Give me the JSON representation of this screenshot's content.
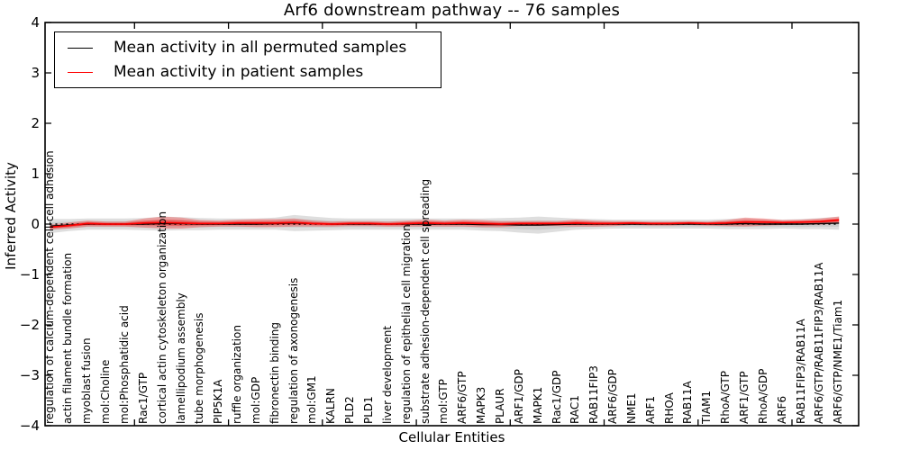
{
  "title": "Arf6 downstream pathway -- 76 samples",
  "legend": {
    "items": [
      {
        "label": "Mean activity in all permuted samples",
        "color": "#000000"
      },
      {
        "label": "Mean activity in patient samples",
        "color": "#ff0000"
      }
    ]
  },
  "axes": {
    "ylabel": "Inferred Activity",
    "xlabel": "Cellular Entities",
    "ytick_labels": [
      "4",
      "3",
      "2",
      "1",
      "0",
      "−1",
      "−2",
      "−3",
      "−4"
    ]
  },
  "colors": {
    "permuted_line": "#000000",
    "patient_line": "#ff0000",
    "permuted_band": "rgba(0,0,0,0.13)",
    "patient_band": "rgba(255,0,0,0.28)",
    "zero_line": "#000000"
  },
  "chart_data": {
    "type": "line",
    "title": "Arf6 downstream pathway -- 76 samples",
    "xlabel": "Cellular Entities",
    "ylabel": "Inferred Activity",
    "ylim": [
      -4,
      4
    ],
    "yticks": [
      4,
      3,
      2,
      1,
      0,
      -1,
      -2,
      -3,
      -4
    ],
    "grid": false,
    "legend_position": "upper left",
    "zero_reference_line": true,
    "categories": [
      "regulation of calcium-dependent cell-cell adhesion",
      "actin filament bundle formation",
      "myoblast fusion",
      "mol:Choline",
      "mol:Phosphatidic acid",
      "Rac1/GTP",
      "cortical actin cytoskeleton organization",
      "lamellipodium assembly",
      "tube morphogenesis",
      "PIP5K1A",
      "ruffle organization",
      "mol:GDP",
      "fibronectin binding",
      "regulation of axonogenesis",
      "mol:GM1",
      "KALRN",
      "PLD2",
      "PLD1",
      "liver development",
      "regulation of epithelial cell migration",
      "substrate adhesion-dependent cell spreading",
      "mol:GTP",
      "ARF6/GTP",
      "MAPK3",
      "PLAUR",
      "ARF1/GDP",
      "MAPK1",
      "Rac1/GDP",
      "RAC1",
      "RAB11FIP3",
      "ARF6/GDP",
      "NME1",
      "ARF1",
      "RHOA",
      "RAB11A",
      "TIAM1",
      "RhoA/GTP",
      "ARF1/GTP",
      "RhoA/GDP",
      "ARF6",
      "RAB11FIP3/RAB11A",
      "ARF6/GTP/RAB11FIP3/RAB11A",
      "ARF6/GTP/NME1/Tiam1"
    ],
    "series": [
      {
        "name": "Mean activity in all permuted samples",
        "color": "#000000",
        "band_color": "rgba(0,0,0,0.13)",
        "values": [
          -0.04,
          -0.02,
          0.0,
          0.0,
          0.0,
          0.0,
          0.01,
          0.01,
          0.0,
          0.0,
          0.0,
          0.0,
          0.01,
          0.02,
          0.01,
          0.0,
          0.0,
          0.0,
          0.0,
          0.0,
          0.0,
          0.0,
          0.0,
          -0.01,
          -0.01,
          -0.02,
          -0.02,
          -0.01,
          0.0,
          0.0,
          0.0,
          0.0,
          0.0,
          0.0,
          0.0,
          0.0,
          0.0,
          0.01,
          0.0,
          0.0,
          0.0,
          0.01,
          0.02
        ],
        "std": [
          0.14,
          0.12,
          0.11,
          0.11,
          0.11,
          0.12,
          0.14,
          0.13,
          0.12,
          0.11,
          0.11,
          0.11,
          0.12,
          0.16,
          0.14,
          0.12,
          0.11,
          0.11,
          0.11,
          0.11,
          0.11,
          0.11,
          0.11,
          0.12,
          0.13,
          0.15,
          0.17,
          0.14,
          0.11,
          0.1,
          0.09,
          0.09,
          0.09,
          0.09,
          0.09,
          0.09,
          0.1,
          0.11,
          0.1,
          0.09,
          0.1,
          0.11,
          0.13
        ]
      },
      {
        "name": "Mean activity in patient samples",
        "color": "#ff0000",
        "band_color": "rgba(255,0,0,0.28)",
        "values": [
          -0.06,
          -0.03,
          0.01,
          0.0,
          0.0,
          0.02,
          0.03,
          0.02,
          0.01,
          0.01,
          0.02,
          0.02,
          0.02,
          0.03,
          0.01,
          0.0,
          0.01,
          0.01,
          0.0,
          0.01,
          0.02,
          0.01,
          0.02,
          0.01,
          0.0,
          0.01,
          0.01,
          0.01,
          0.02,
          0.01,
          0.01,
          0.02,
          0.01,
          0.01,
          0.02,
          0.01,
          0.02,
          0.04,
          0.04,
          0.03,
          0.04,
          0.05,
          0.08
        ],
        "std": [
          0.05,
          0.06,
          0.06,
          0.05,
          0.05,
          0.09,
          0.12,
          0.11,
          0.07,
          0.06,
          0.07,
          0.08,
          0.08,
          0.08,
          0.06,
          0.05,
          0.05,
          0.05,
          0.05,
          0.06,
          0.07,
          0.06,
          0.07,
          0.07,
          0.06,
          0.05,
          0.05,
          0.05,
          0.07,
          0.06,
          0.05,
          0.04,
          0.04,
          0.04,
          0.04,
          0.04,
          0.06,
          0.09,
          0.07,
          0.05,
          0.05,
          0.06,
          0.07
        ]
      }
    ]
  }
}
